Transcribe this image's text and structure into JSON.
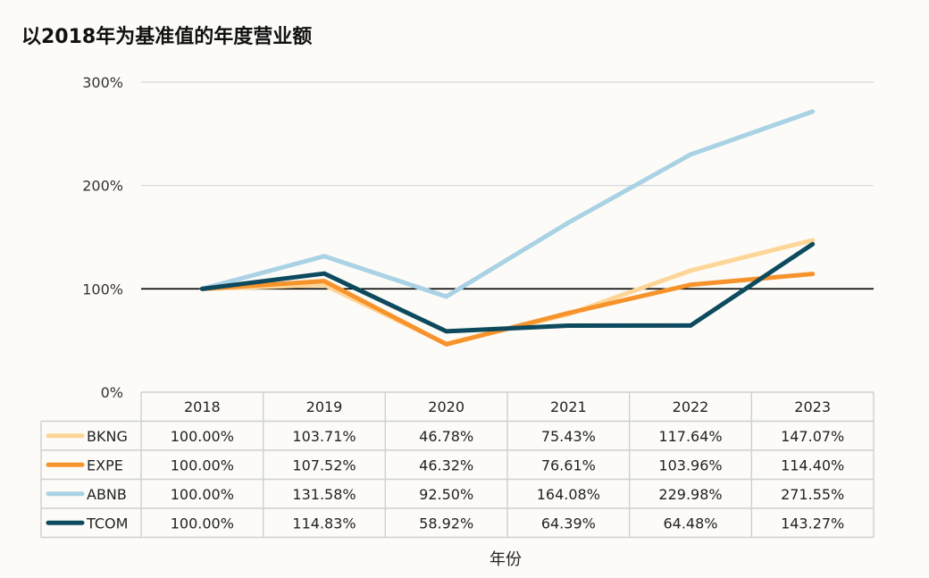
{
  "chart_data": {
    "type": "line",
    "title": "以2018年为基准值的年度营业额",
    "xlabel": "年份",
    "ylabel": "",
    "ylim": [
      0,
      300
    ],
    "yticks": [
      "0%",
      "100%",
      "200%",
      "300%"
    ],
    "categories": [
      "2018",
      "2019",
      "2020",
      "2021",
      "2022",
      "2023"
    ],
    "grid": true,
    "legend": "data-table-left",
    "series": [
      {
        "name": "BKNG",
        "color": "#fdd597",
        "values": [
          100.0,
          103.71,
          46.78,
          75.43,
          117.64,
          147.07
        ],
        "labels": [
          "100.00%",
          "103.71%",
          "46.78%",
          "75.43%",
          "117.64%",
          "147.07%"
        ]
      },
      {
        "name": "EXPE",
        "color": "#f7932b",
        "values": [
          100.0,
          107.52,
          46.32,
          76.61,
          103.96,
          114.4
        ],
        "labels": [
          "100.00%",
          "107.52%",
          "46.32%",
          "76.61%",
          "103.96%",
          "114.40%"
        ]
      },
      {
        "name": "ABNB",
        "color": "#a9d2e4",
        "values": [
          100.0,
          131.58,
          92.5,
          164.08,
          229.98,
          271.55
        ],
        "labels": [
          "100.00%",
          "131.58%",
          "92.50%",
          "164.08%",
          "229.98%",
          "271.55%"
        ]
      },
      {
        "name": "TCOM",
        "color": "#0e4a5e",
        "values": [
          100.0,
          114.83,
          58.92,
          64.39,
          64.48,
          143.27
        ],
        "labels": [
          "100.00%",
          "114.83%",
          "58.92%",
          "64.39%",
          "64.48%",
          "143.27%"
        ]
      }
    ]
  }
}
